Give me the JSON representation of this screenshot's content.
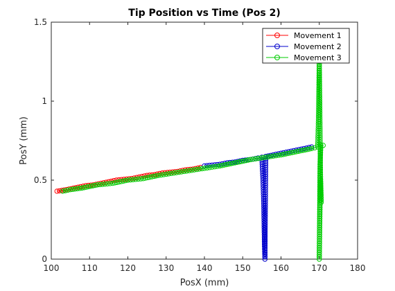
{
  "chart_data": {
    "type": "line",
    "title": "Tip Position vs Time (Pos 2)",
    "xlabel": "PosX (mm)",
    "ylabel": "PosY (mm)",
    "xlim": [
      100,
      180
    ],
    "ylim": [
      0,
      1.5
    ],
    "xticks": [
      "100",
      "110",
      "120",
      "130",
      "140",
      "150",
      "160",
      "170",
      "180"
    ],
    "yticks": [
      "0",
      "0.5",
      "1",
      "1.5"
    ],
    "grid": false,
    "legend_position": "top-right",
    "marker": "circle-open",
    "series": [
      {
        "name": "Movement 1",
        "color": "#ff0000",
        "x": [
          101.5,
          104,
          107,
          109,
          111,
          113,
          115,
          117,
          119,
          121,
          123,
          125,
          127,
          129,
          131,
          133,
          135,
          137,
          139
        ],
        "y": [
          0.43,
          0.44,
          0.455,
          0.465,
          0.47,
          0.48,
          0.49,
          0.5,
          0.505,
          0.51,
          0.52,
          0.53,
          0.535,
          0.545,
          0.55,
          0.555,
          0.565,
          0.57,
          0.58
        ]
      },
      {
        "name": "Movement 2",
        "color": "#0000cc",
        "x": [
          140,
          142,
          144,
          146,
          148,
          150,
          152,
          154,
          155,
          155.3,
          155.5,
          155.6,
          155.7,
          155.8,
          156,
          158,
          160,
          162,
          164,
          166,
          168
        ],
        "y": [
          0.59,
          0.595,
          0.6,
          0.61,
          0.615,
          0.625,
          0.63,
          0.64,
          0.645,
          0.5,
          0.35,
          0.2,
          0.08,
          0,
          0.65,
          0.66,
          0.67,
          0.68,
          0.69,
          0.7,
          0.71
        ]
      },
      {
        "name": "Movement 3",
        "color": "#00cc00",
        "x": [
          103,
          105,
          108,
          112,
          116,
          120,
          124,
          128,
          132,
          136,
          140,
          144,
          148,
          152,
          156,
          160,
          164,
          168,
          169.6,
          169.8,
          170,
          170.2,
          170.3,
          170.5,
          170.3,
          170.1,
          170,
          170.2,
          170.4,
          171
        ],
        "y": [
          0.43,
          0.44,
          0.45,
          0.47,
          0.48,
          0.5,
          0.51,
          0.53,
          0.545,
          0.56,
          0.575,
          0.59,
          0.61,
          0.63,
          0.645,
          0.66,
          0.68,
          0.7,
          0.71,
          0.9,
          1.25,
          0.8,
          0.55,
          0.36,
          0.5,
          0.2,
          0,
          0.6,
          0.72,
          0.72
        ]
      }
    ]
  }
}
